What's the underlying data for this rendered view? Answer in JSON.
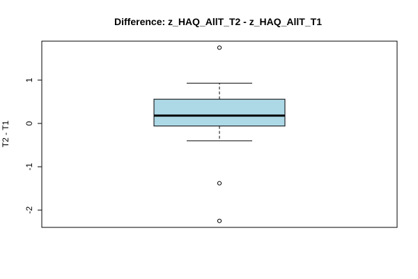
{
  "chart_data": {
    "type": "boxplot",
    "title": "Difference: z_HAQ_AllT_T2 - z_HAQ_AllT_T1",
    "xlabel": "",
    "ylabel": "T2 - T1",
    "ylim": [
      -2.4,
      1.9
    ],
    "yticks": [
      -2,
      -1,
      0,
      1
    ],
    "ytick_labels": [
      "-2",
      "-1",
      "0",
      "1"
    ],
    "box": {
      "whisker_low": -0.4,
      "q1": -0.06,
      "median": 0.18,
      "q3": 0.56,
      "whisker_high": 0.93
    },
    "outliers": [
      1.75,
      -1.38,
      -2.25
    ],
    "fill_color": "#add8e6",
    "grid": false,
    "legend": "none"
  }
}
